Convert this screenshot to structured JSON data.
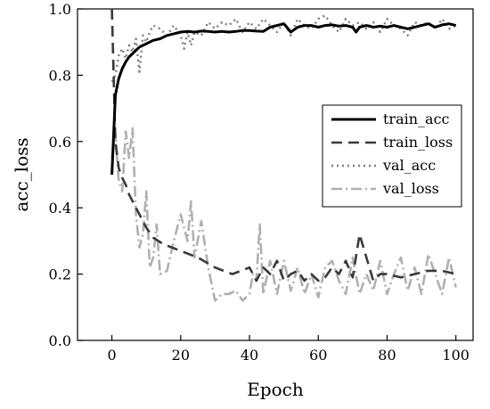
{
  "chart_data": {
    "type": "line",
    "title": "",
    "xlabel": "Epoch",
    "ylabel": "acc_loss",
    "xlim": [
      -10,
      105
    ],
    "ylim": [
      0.0,
      1.0
    ],
    "xticks": [
      0,
      20,
      40,
      60,
      80,
      100
    ],
    "yticks": [
      0.0,
      0.2,
      0.4,
      0.6,
      0.8,
      1.0
    ],
    "xtick_labels": [
      "0",
      "20",
      "40",
      "60",
      "80",
      "100"
    ],
    "ytick_labels": [
      "0.0",
      "0.2",
      "0.4",
      "0.6",
      "0.8",
      "1.0"
    ],
    "grid": false,
    "legend_position": "right",
    "series": [
      {
        "name": "train_acc",
        "color": "#000000",
        "style": "solid",
        "x": [
          0,
          1,
          2,
          3,
          4,
          5,
          6,
          7,
          8,
          9,
          10,
          12,
          14,
          16,
          18,
          20,
          22,
          24,
          26,
          28,
          30,
          32,
          34,
          36,
          38,
          40,
          42,
          44,
          46,
          48,
          50,
          52,
          54,
          56,
          58,
          60,
          62,
          64,
          66,
          68,
          70,
          71,
          72,
          74,
          76,
          78,
          80,
          82,
          84,
          86,
          88,
          90,
          92,
          94,
          96,
          98,
          100
        ],
        "y": [
          0.5,
          0.74,
          0.79,
          0.82,
          0.84,
          0.855,
          0.865,
          0.875,
          0.885,
          0.89,
          0.895,
          0.905,
          0.91,
          0.92,
          0.925,
          0.93,
          0.932,
          0.93,
          0.933,
          0.932,
          0.93,
          0.932,
          0.93,
          0.932,
          0.935,
          0.935,
          0.933,
          0.932,
          0.945,
          0.95,
          0.955,
          0.93,
          0.945,
          0.95,
          0.95,
          0.945,
          0.95,
          0.952,
          0.948,
          0.95,
          0.945,
          0.93,
          0.945,
          0.95,
          0.945,
          0.948,
          0.945,
          0.95,
          0.945,
          0.94,
          0.945,
          0.95,
          0.955,
          0.945,
          0.952,
          0.955,
          0.95
        ]
      },
      {
        "name": "train_loss",
        "color": "#3a3a3a",
        "style": "dash",
        "x": [
          0,
          1,
          2,
          3,
          4,
          5,
          6,
          7,
          8,
          9,
          10,
          12,
          15,
          20,
          25,
          30,
          35,
          40,
          42,
          44,
          46,
          48,
          50,
          52,
          54,
          56,
          58,
          60,
          62,
          64,
          66,
          68,
          70,
          72,
          74,
          76,
          78,
          80,
          84,
          88,
          92,
          96,
          100
        ],
        "y": [
          1.0,
          0.6,
          0.52,
          0.49,
          0.47,
          0.44,
          0.42,
          0.4,
          0.38,
          0.36,
          0.34,
          0.31,
          0.29,
          0.27,
          0.25,
          0.22,
          0.2,
          0.22,
          0.18,
          0.22,
          0.2,
          0.24,
          0.18,
          0.2,
          0.21,
          0.18,
          0.2,
          0.18,
          0.19,
          0.22,
          0.2,
          0.24,
          0.19,
          0.32,
          0.25,
          0.18,
          0.2,
          0.2,
          0.19,
          0.2,
          0.21,
          0.21,
          0.2
        ]
      },
      {
        "name": "val_acc",
        "color": "#7d7d7d",
        "style": "dot",
        "x": [
          0,
          1,
          2,
          3,
          4,
          5,
          6,
          7,
          8,
          9,
          10,
          11,
          12,
          14,
          16,
          18,
          20,
          21,
          22,
          23,
          24,
          26,
          28,
          30,
          32,
          34,
          36,
          38,
          40,
          42,
          44,
          46,
          48,
          50,
          52,
          54,
          56,
          58,
          60,
          62,
          64,
          66,
          68,
          70,
          72,
          74,
          76,
          78,
          80,
          82,
          84,
          86,
          88,
          90,
          92,
          94,
          96,
          98,
          100
        ],
        "y": [
          0.78,
          0.8,
          0.86,
          0.88,
          0.85,
          0.89,
          0.87,
          0.91,
          0.81,
          0.92,
          0.9,
          0.93,
          0.95,
          0.94,
          0.92,
          0.95,
          0.92,
          0.88,
          0.93,
          0.89,
          0.93,
          0.92,
          0.96,
          0.94,
          0.96,
          0.95,
          0.97,
          0.93,
          0.96,
          0.94,
          0.97,
          0.95,
          0.93,
          0.96,
          0.92,
          0.97,
          0.95,
          0.94,
          0.97,
          0.98,
          0.95,
          0.93,
          0.97,
          0.95,
          0.96,
          0.94,
          0.96,
          0.93,
          0.97,
          0.95,
          0.94,
          0.92,
          0.96,
          0.95,
          0.96,
          0.94,
          0.97,
          0.94,
          0.95
        ]
      },
      {
        "name": "val_loss",
        "color": "#b0b0b0",
        "style": "dashdot",
        "x": [
          0,
          1,
          2,
          3,
          4,
          5,
          6,
          7,
          8,
          9,
          10,
          11,
          12,
          13,
          14,
          16,
          18,
          20,
          22,
          23,
          24,
          26,
          28,
          30,
          32,
          34,
          36,
          38,
          40,
          41,
          42,
          43,
          44,
          46,
          48,
          50,
          52,
          54,
          56,
          58,
          60,
          62,
          64,
          66,
          68,
          70,
          72,
          74,
          76,
          78,
          80,
          82,
          84,
          86,
          88,
          90,
          92,
          94,
          96,
          98,
          100
        ],
        "y": [
          0.55,
          0.62,
          0.48,
          0.45,
          0.63,
          0.55,
          0.64,
          0.38,
          0.28,
          0.32,
          0.45,
          0.22,
          0.25,
          0.35,
          0.2,
          0.21,
          0.3,
          0.38,
          0.3,
          0.42,
          0.25,
          0.36,
          0.22,
          0.12,
          0.14,
          0.14,
          0.15,
          0.12,
          0.14,
          0.2,
          0.18,
          0.35,
          0.14,
          0.24,
          0.14,
          0.24,
          0.15,
          0.22,
          0.14,
          0.2,
          0.13,
          0.22,
          0.24,
          0.18,
          0.14,
          0.25,
          0.14,
          0.2,
          0.15,
          0.24,
          0.14,
          0.2,
          0.25,
          0.15,
          0.22,
          0.14,
          0.26,
          0.2,
          0.14,
          0.25,
          0.16
        ]
      }
    ]
  }
}
